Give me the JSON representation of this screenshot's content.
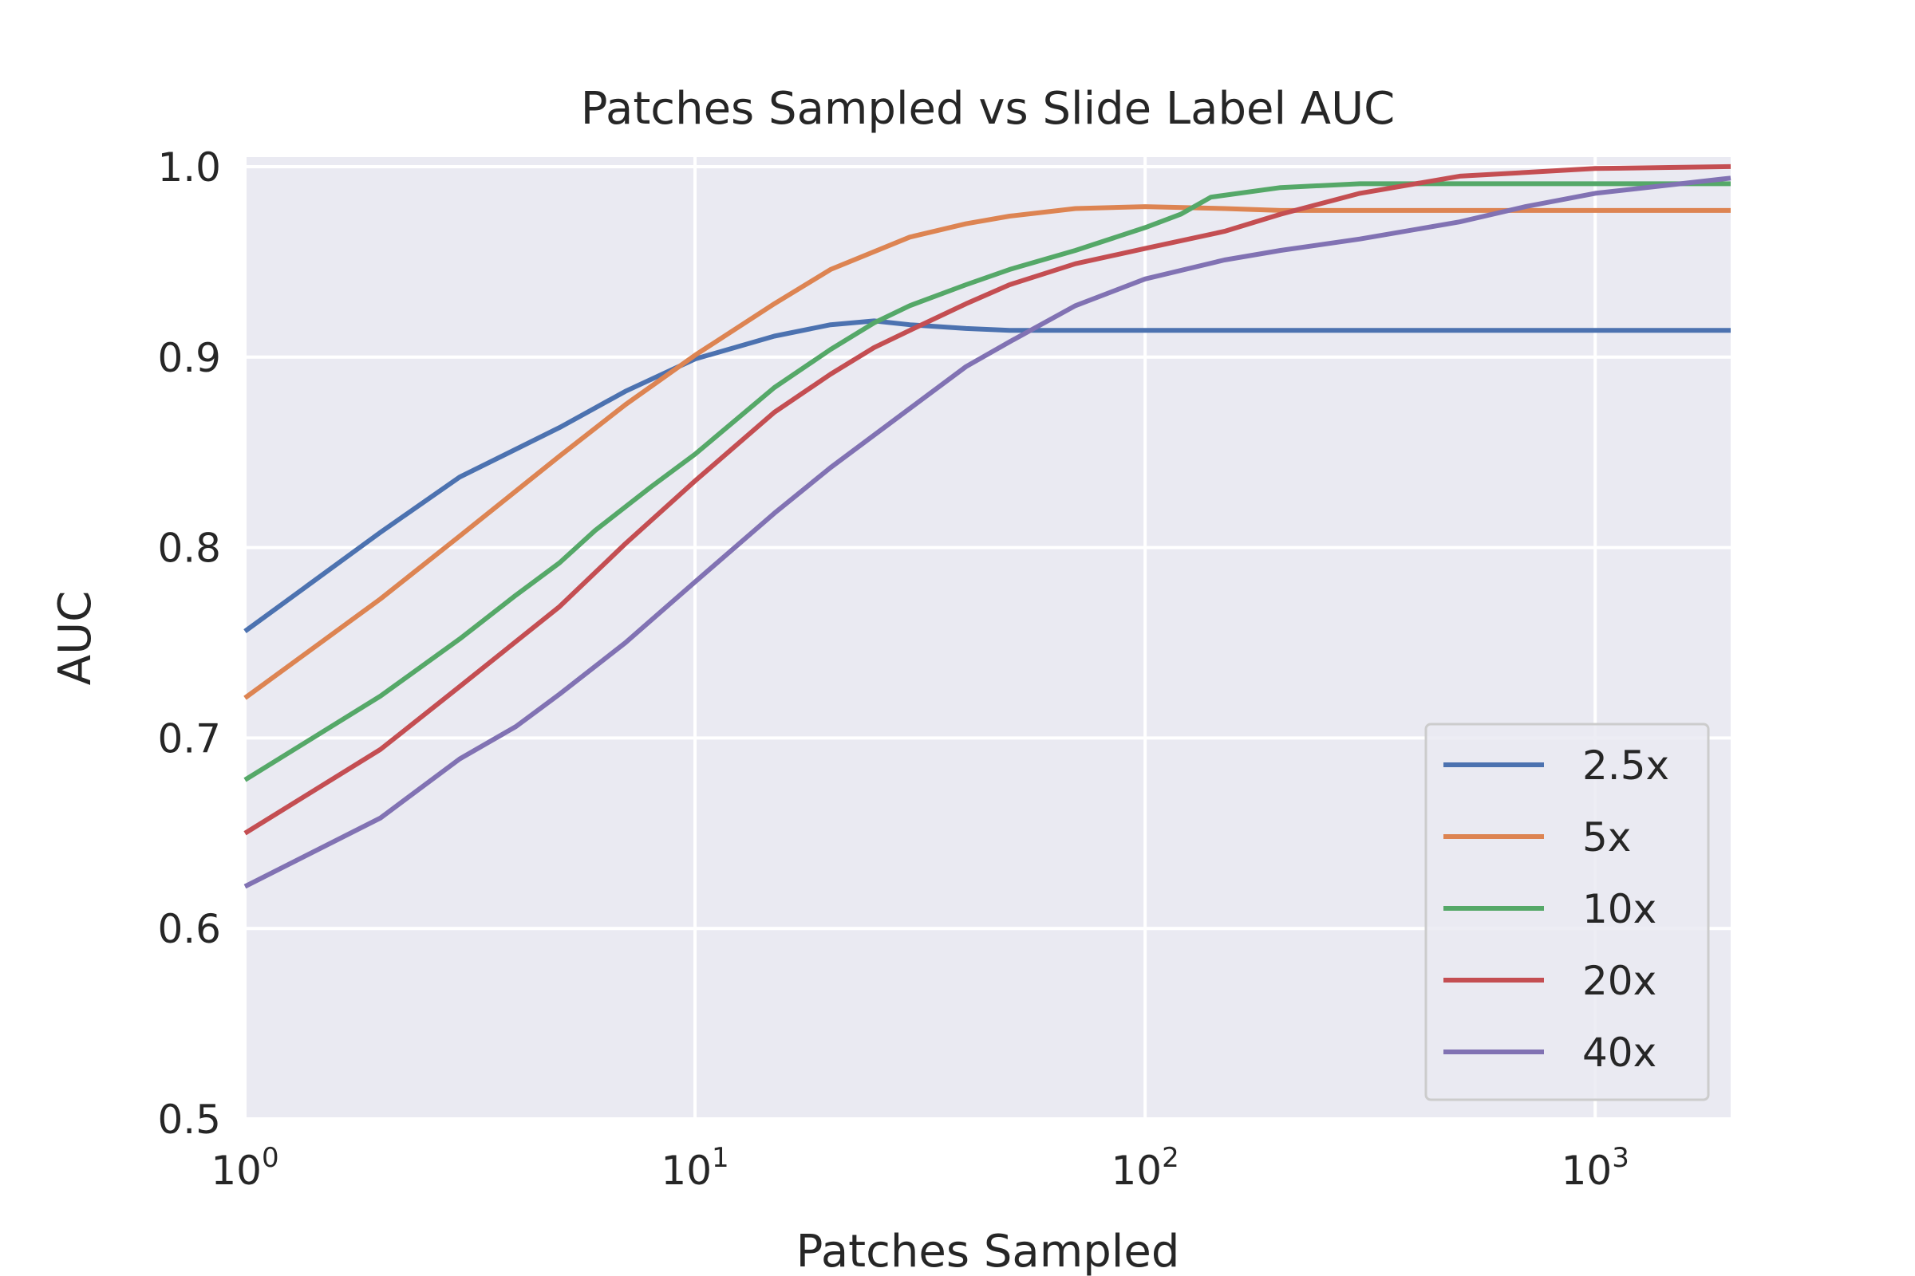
{
  "chart_data": {
    "type": "line",
    "title": "Patches Sampled vs Slide Label AUC",
    "xlabel": "Patches Sampled",
    "ylabel": "AUC",
    "xscale": "log",
    "xlim": [
      1,
      2000
    ],
    "ylim": [
      0.5,
      1.005
    ],
    "x_ticks": [
      {
        "base": "10",
        "exp": "0",
        "value": 1
      },
      {
        "base": "10",
        "exp": "1",
        "value": 10
      },
      {
        "base": "10",
        "exp": "2",
        "value": 100
      },
      {
        "base": "10",
        "exp": "3",
        "value": 1000
      }
    ],
    "y_ticks": [
      {
        "label": "0.5",
        "value": 0.5
      },
      {
        "label": "0.6",
        "value": 0.6
      },
      {
        "label": "0.7",
        "value": 0.7
      },
      {
        "label": "0.8",
        "value": 0.8
      },
      {
        "label": "0.9",
        "value": 0.9
      },
      {
        "label": "1.0",
        "value": 1.0
      }
    ],
    "grid": true,
    "background": "#eaeaf2",
    "legend_position": "lower-right",
    "series": [
      {
        "name": "2.5x",
        "color": "#4c72b0",
        "x": [
          1,
          2,
          3,
          5,
          7,
          10,
          15,
          20,
          25,
          30,
          40,
          50,
          100,
          200,
          500,
          1000,
          2000
        ],
        "y": [
          0.756,
          0.808,
          0.837,
          0.863,
          0.882,
          0.899,
          0.911,
          0.917,
          0.919,
          0.917,
          0.915,
          0.914,
          0.914,
          0.914,
          0.914,
          0.914,
          0.914
        ]
      },
      {
        "name": "5x",
        "color": "#dd8452",
        "x": [
          1,
          2,
          3,
          5,
          7,
          10,
          15,
          20,
          30,
          40,
          50,
          70,
          100,
          150,
          200,
          500,
          1000,
          2000
        ],
        "y": [
          0.721,
          0.773,
          0.806,
          0.848,
          0.875,
          0.901,
          0.928,
          0.946,
          0.963,
          0.97,
          0.974,
          0.978,
          0.979,
          0.978,
          0.977,
          0.977,
          0.977,
          0.977
        ]
      },
      {
        "name": "10x",
        "color": "#55a868",
        "x": [
          1,
          2,
          3,
          4,
          5,
          6,
          8,
          10,
          15,
          20,
          25,
          30,
          40,
          50,
          70,
          100,
          120,
          140,
          200,
          300,
          500,
          1000,
          2000
        ],
        "y": [
          0.678,
          0.722,
          0.752,
          0.775,
          0.792,
          0.809,
          0.832,
          0.849,
          0.884,
          0.904,
          0.918,
          0.927,
          0.938,
          0.946,
          0.956,
          0.968,
          0.975,
          0.984,
          0.989,
          0.991,
          0.991,
          0.991,
          0.991
        ]
      },
      {
        "name": "20x",
        "color": "#c44e52",
        "x": [
          1,
          2,
          3,
          5,
          7,
          10,
          15,
          20,
          25,
          30,
          40,
          50,
          70,
          100,
          150,
          200,
          300,
          500,
          1000,
          2000
        ],
        "y": [
          0.65,
          0.694,
          0.727,
          0.769,
          0.802,
          0.835,
          0.871,
          0.891,
          0.905,
          0.914,
          0.928,
          0.938,
          0.949,
          0.957,
          0.966,
          0.975,
          0.986,
          0.995,
          0.999,
          1.0
        ]
      },
      {
        "name": "40x",
        "color": "#8172b3",
        "x": [
          1,
          2,
          3,
          4,
          5,
          7,
          10,
          15,
          20,
          30,
          40,
          50,
          70,
          100,
          150,
          200,
          300,
          500,
          700,
          1000,
          2000
        ],
        "y": [
          0.622,
          0.658,
          0.689,
          0.706,
          0.723,
          0.75,
          0.782,
          0.818,
          0.842,
          0.873,
          0.895,
          0.908,
          0.927,
          0.941,
          0.951,
          0.956,
          0.962,
          0.971,
          0.979,
          0.986,
          0.994
        ]
      }
    ]
  }
}
